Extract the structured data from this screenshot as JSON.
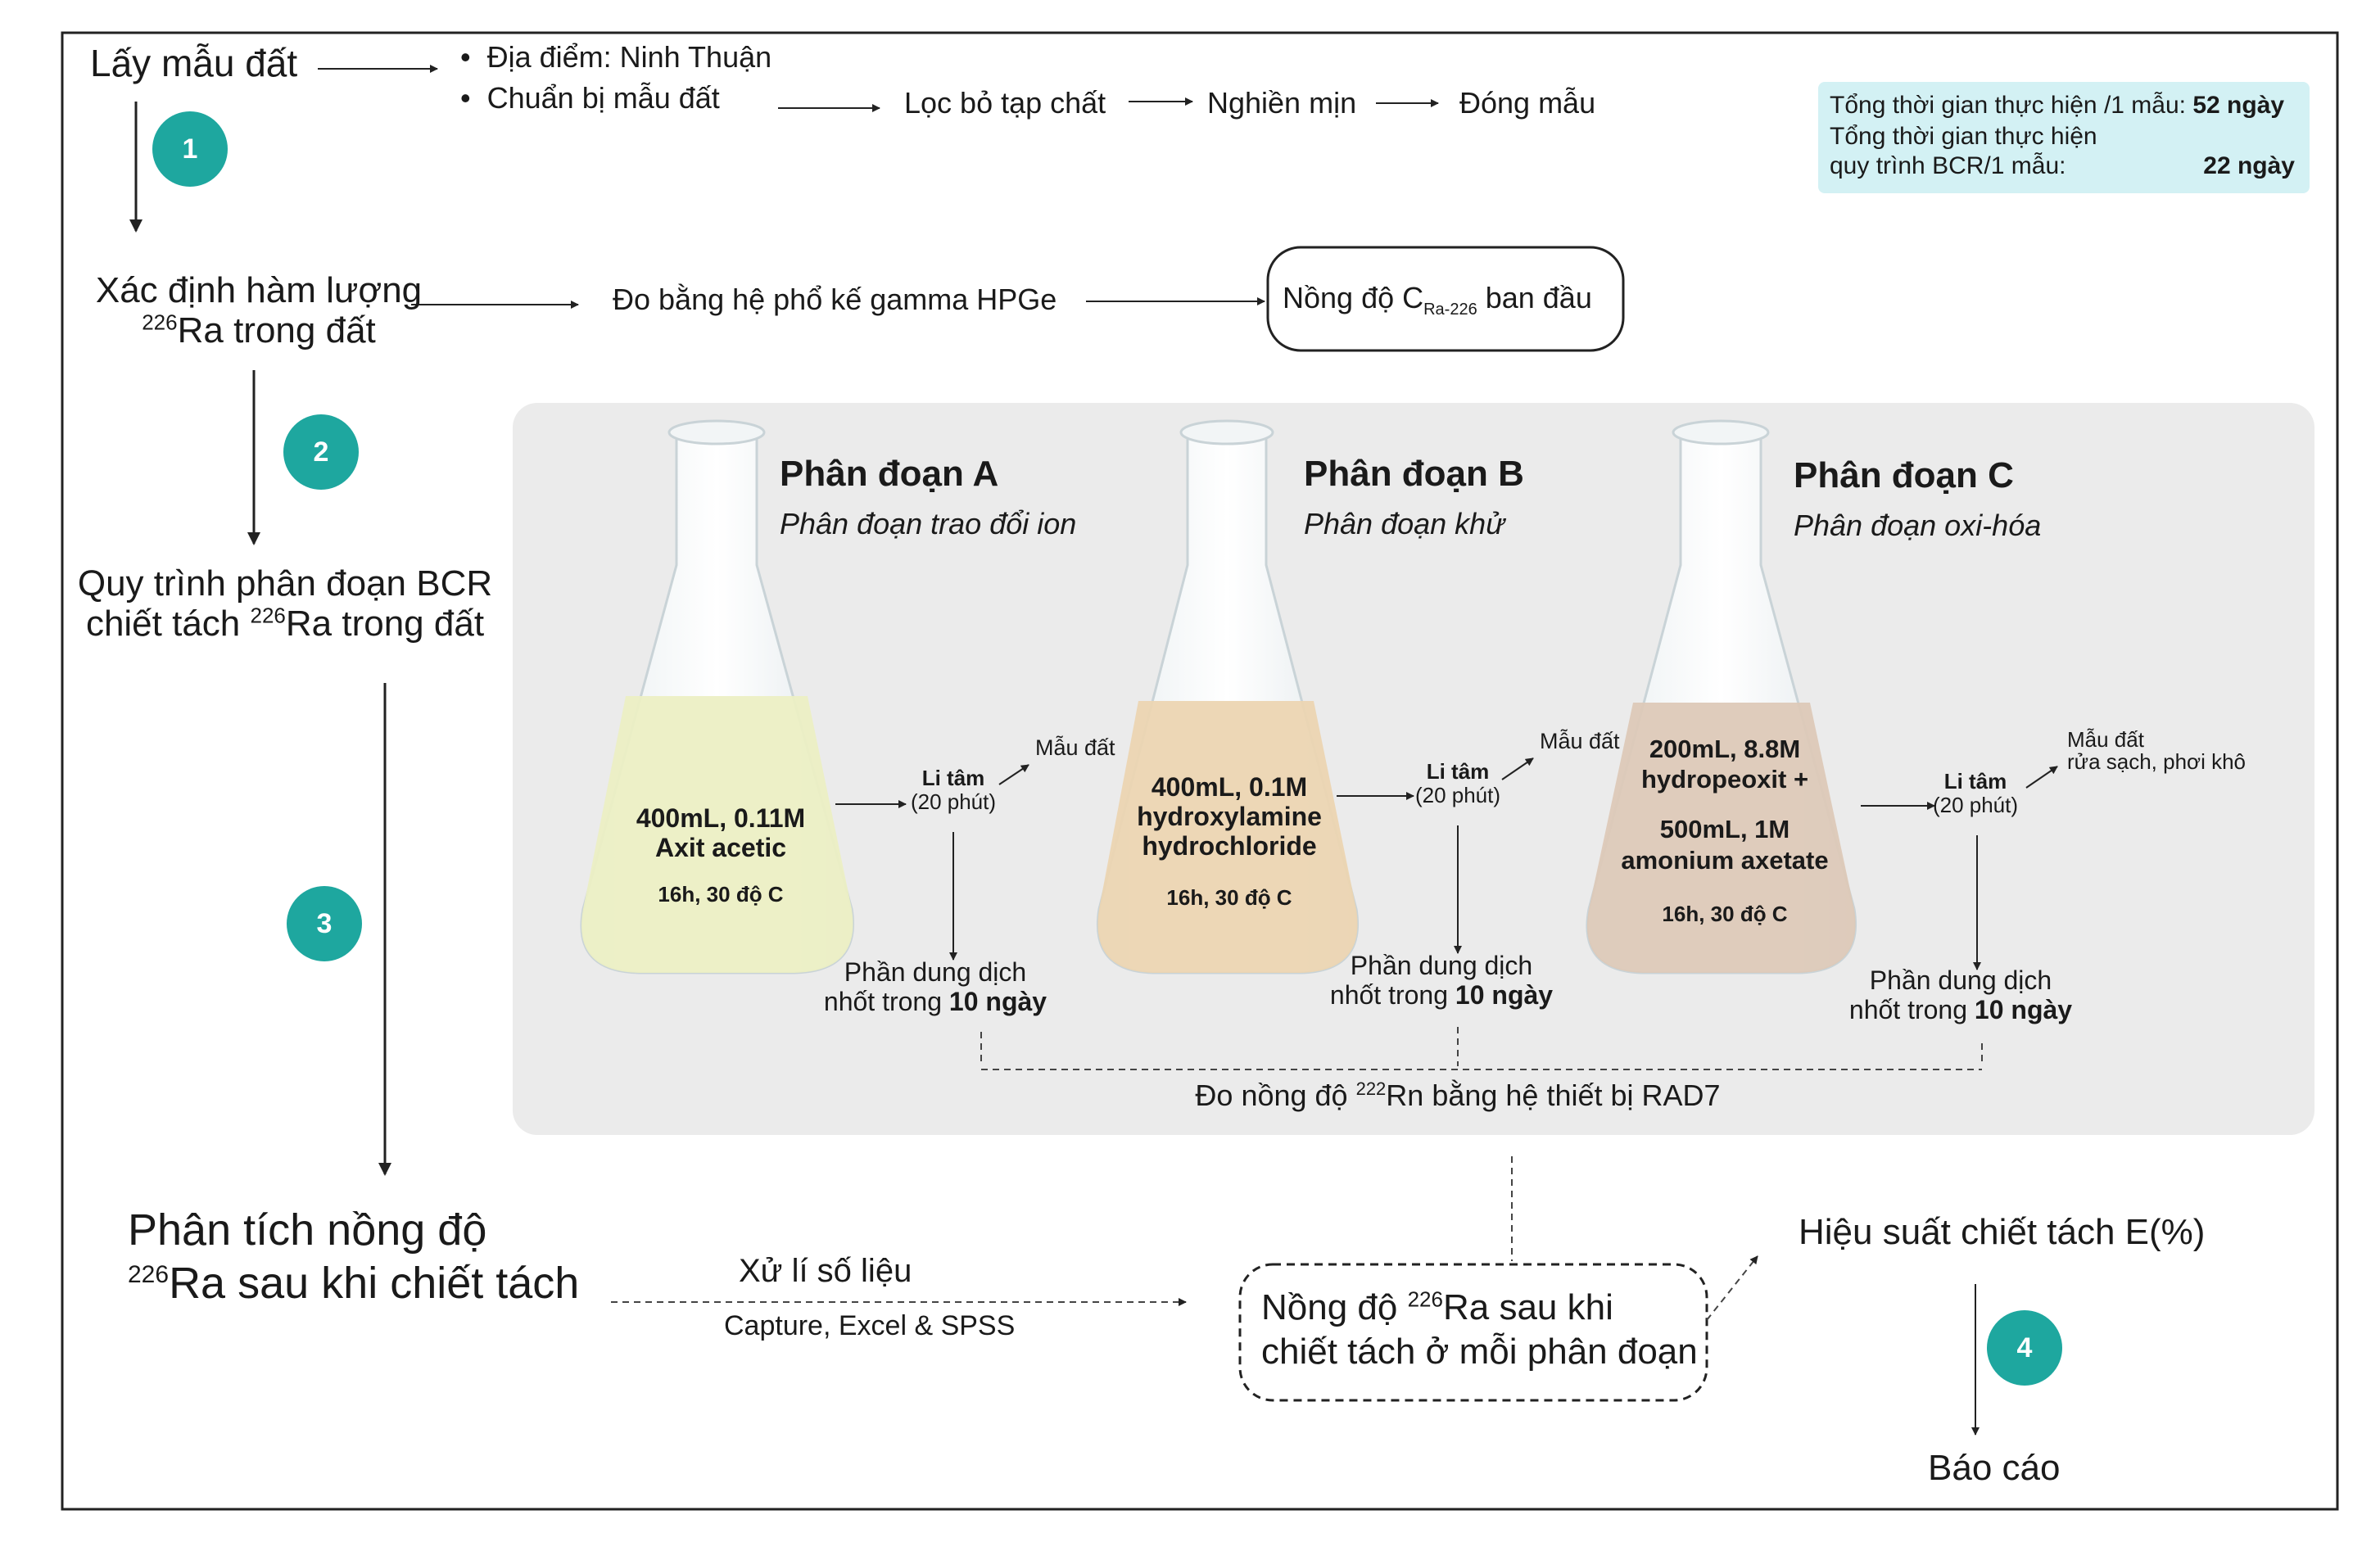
{
  "steps": {
    "s1": {
      "number": "1",
      "title": "Lấy mẫu đất"
    },
    "s2": {
      "number": "2",
      "title_line1": "Xác định hàm lượng",
      "title_iso": "226",
      "title_line2_rest": "Ra trong đất"
    },
    "s3": {
      "number": "3",
      "title_line1": "Quy trình phân đoạn BCR",
      "title_line2_pre": "chiết tách ",
      "title_iso": "226",
      "title_line2_rest": "Ra trong đất"
    },
    "s4": {
      "number": "4",
      "title_line1": "Phân tích nồng độ",
      "title_iso": "226",
      "title_line2_rest": "Ra sau khi chiết tách"
    }
  },
  "sampling": {
    "bullet1": "Địa điểm: Ninh Thuận",
    "bullet2": "Chuẩn bị mẫu đất",
    "chain": [
      "Lọc bỏ tạp chất",
      "Nghiền mịn",
      "Đóng mẫu"
    ]
  },
  "time_box": {
    "line1_label": "Tổng thời gian thực hiện /1 mẫu:",
    "line1_value": "52 ngày",
    "line2": "Tổng thời gian thực hiện",
    "line3_label": "quy trình BCR/1 mẫu:",
    "line3_value": "22 ngày"
  },
  "gamma": {
    "method": "Đo bằng hệ phổ kế gamma HPGe",
    "result_pre": "Nồng độ C",
    "result_sub": "Ra-226",
    "result_post": " ban đầu"
  },
  "fractions": [
    {
      "title": "Phân đoạn A",
      "subtitle": "Phân đoạn trao đổi ion",
      "reagent_lines": [
        "400mL, 0.11M",
        "Axit acetic"
      ],
      "condition": "16h, 30 độ C",
      "centrifuge": "Li tâm",
      "centrifuge_time": "(20 phút)",
      "solid": "Mẫu đất",
      "solid_extra": "",
      "liquid_line1": "Phần dung dịch",
      "liquid_line2_pre": "nhốt trong ",
      "liquid_line2_bold": "10 ngày",
      "liquid_color": "#ecefc4"
    },
    {
      "title": "Phân đoạn B",
      "subtitle": "Phân đoạn khử",
      "reagent_lines": [
        "400mL, 0.1M",
        "hydroxylamine",
        "hydrochloride"
      ],
      "condition": "16h, 30 độ C",
      "centrifuge": "Li tâm",
      "centrifuge_time": "(20 phút)",
      "solid": "Mẫu đất",
      "solid_extra": "",
      "liquid_line1": "Phần dung dịch",
      "liquid_line2_pre": "nhốt trong ",
      "liquid_line2_bold": "10 ngày",
      "liquid_color": "#ecd5b2"
    },
    {
      "title": "Phân đoạn C",
      "subtitle": "Phân đoạn oxi-hóa",
      "reagent_lines": [
        "200mL, 8.8M",
        "hydropeoxit +",
        "",
        "500mL, 1M",
        "amonium axetate"
      ],
      "condition": "16h, 30 độ C",
      "centrifuge": "Li tâm",
      "centrifuge_time": "(20 phút)",
      "solid": "Mẫu đất",
      "solid_extra": "rửa sạch, phơi khô",
      "liquid_line1": "Phần dung dịch",
      "liquid_line2_pre": "nhốt trong ",
      "liquid_line2_bold": "10 ngày",
      "liquid_color": "#ddc9b8"
    }
  ],
  "rad7": {
    "pre": "Đo nồng độ ",
    "iso": "222",
    "post": "Rn bằng hệ thiết bị RAD7"
  },
  "processing": {
    "label": "Xử lí số liệu",
    "tools": "Capture, Excel & SPSS"
  },
  "final_result": {
    "line1_pre": "Nồng độ ",
    "iso": "226",
    "line1_post": "Ra sau khi",
    "line2": "chiết tách ở mỗi phân đoạn"
  },
  "efficiency": "Hiệu suất chiết tách E(%)",
  "report": "Báo cáo",
  "colors": {
    "accent": "#1ea79f",
    "panel": "#ebebeb",
    "time_box": "#d3f1f4"
  }
}
